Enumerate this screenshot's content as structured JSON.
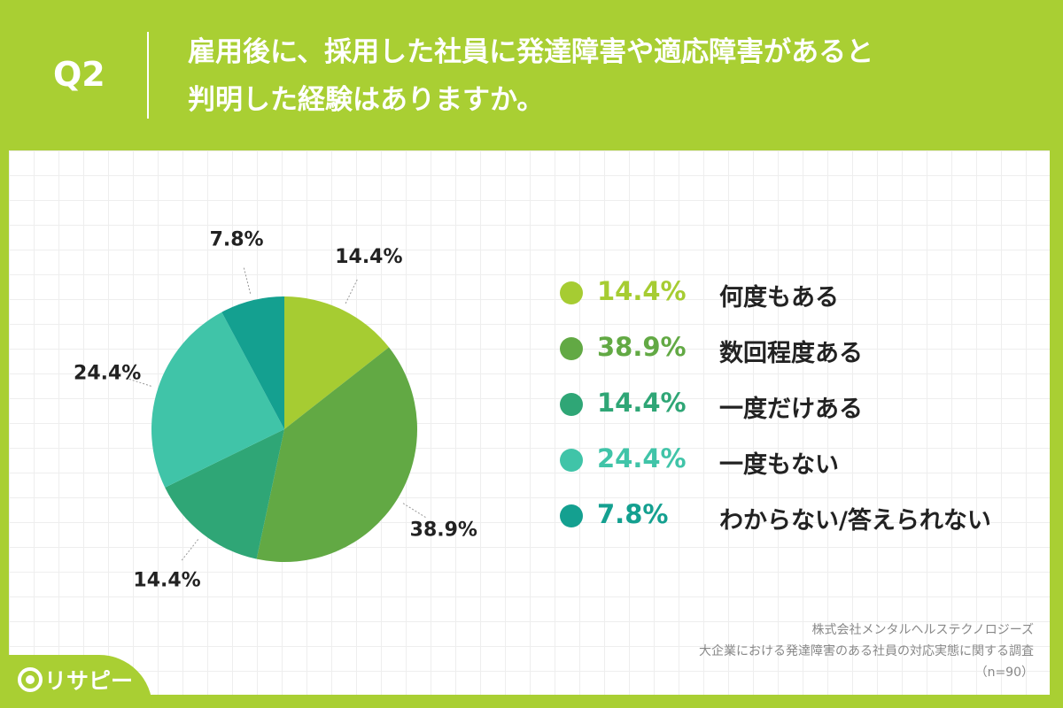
{
  "header": {
    "question_label": "Q2",
    "title_lines": [
      "雇用後に、採用した社員に発達障害や適応障害があると",
      "判明した経験はありますか。"
    ]
  },
  "chart_data": {
    "type": "pie",
    "slices": [
      {
        "label": "何度もある",
        "value": 14.4,
        "display": "14.4%",
        "color": "#a6cc32"
      },
      {
        "label": "数回程度ある",
        "value": 38.9,
        "display": "38.9%",
        "color": "#62a944"
      },
      {
        "label": "一度だけある",
        "value": 14.4,
        "display": "14.4%",
        "color": "#2fa676"
      },
      {
        "label": "一度もない",
        "value": 24.4,
        "display": "24.4%",
        "color": "#40c4a8"
      },
      {
        "label": "わからない/答えられない",
        "value": 7.8,
        "display": "7.8%",
        "color": "#14a090"
      }
    ],
    "legend_placement": "right"
  },
  "source": {
    "line1": "株式会社メンタルヘルステクノロジーズ",
    "line2": "大企業における発達障害のある社員の対応実態に関する調査",
    "line3": "（n=90）"
  },
  "logo": {
    "text": "リサピー"
  }
}
